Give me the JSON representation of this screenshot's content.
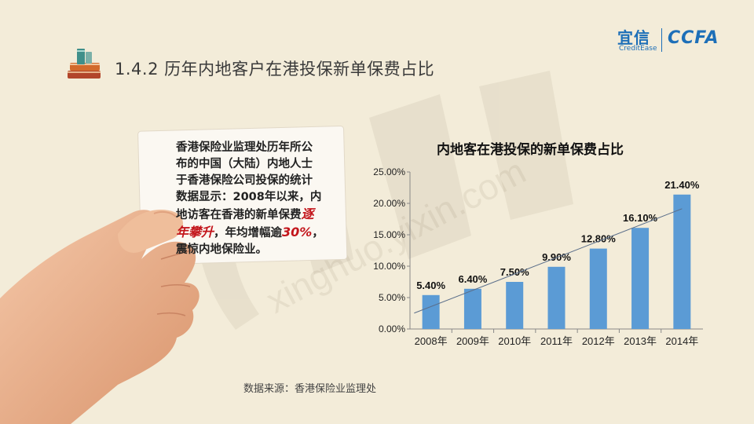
{
  "header": {
    "title": "1.4.2 历年内地客户在港投保新单保费占比",
    "icon": "stacked-books-icon"
  },
  "logo": {
    "cn": "宜信",
    "en": "CreditEase",
    "mark": "CCFA",
    "color": "#1d6fb8"
  },
  "watermark": {
    "text": "xinghuo.yixin.com"
  },
  "card": {
    "line1": "香港保险业监理处历年所公",
    "line2": "布的中国（大陆）内地人士",
    "line3": "于香港保险公司投保的统计",
    "line4": "数据显示：2008年以来，内",
    "line5_pre": "地访客在香港的新单保费",
    "line5_hl": "逐",
    "line6_hl": "年攀升",
    "line6_mid": "，年均增幅逾",
    "line6_hl2": "30%",
    "line6_end": "，",
    "line7": "震惊内地保险业。",
    "highlight_color": "#c3161c"
  },
  "chart_data": {
    "type": "bar",
    "title": "内地客在港投保的新单保费占比",
    "categories": [
      "2008年",
      "2009年",
      "2010年",
      "2011年",
      "2012年",
      "2013年",
      "2014年"
    ],
    "values": [
      5.4,
      6.4,
      7.5,
      9.9,
      12.8,
      16.1,
      21.4
    ],
    "value_labels": [
      "5.40%",
      "6.40%",
      "7.50%",
      "9.90%",
      "12.80%",
      "16.10%",
      "21.40%"
    ],
    "yticks": [
      "0.00%",
      "5.00%",
      "10.00%",
      "15.00%",
      "20.00%",
      "25.00%"
    ],
    "ylim": [
      0,
      25
    ],
    "trendline": true,
    "grid": false,
    "bar_color": "#5b9bd5"
  },
  "source": "数据来源：香港保险业监理处"
}
